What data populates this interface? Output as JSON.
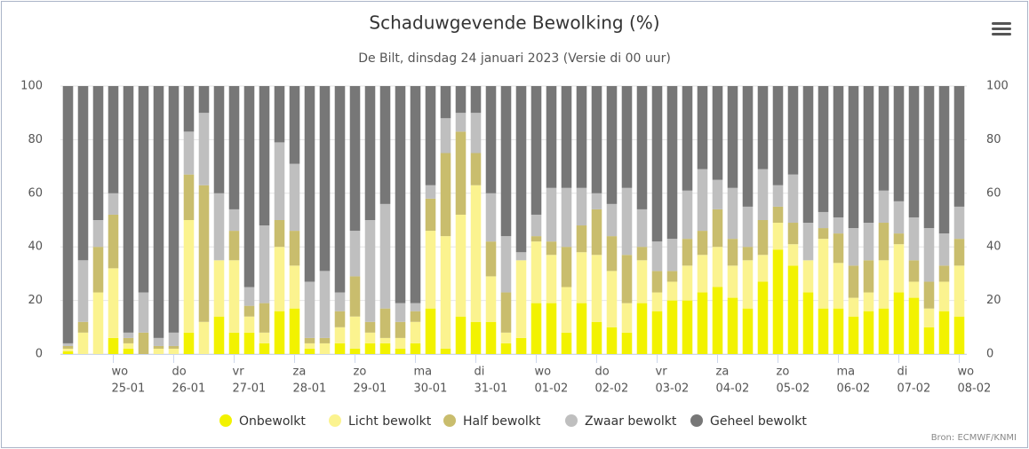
{
  "chart_data": {
    "type": "stacked_bar",
    "title": "Schaduwgevende Bewolking (%)",
    "subtitle": "De Bilt, dinsdag 24 januari 2023 (Versie di 00 uur)",
    "credits": "Bron: ECMWF/KNMI",
    "categories": [
      null,
      null,
      null,
      "25-01",
      null,
      null,
      null,
      "26-01",
      null,
      null,
      null,
      "27-01",
      null,
      null,
      null,
      "28-01",
      null,
      null,
      null,
      "29-01",
      null,
      null,
      null,
      "30-01",
      null,
      null,
      null,
      "31-01",
      null,
      null,
      null,
      "01-02",
      null,
      null,
      null,
      "02-02",
      null,
      null,
      null,
      "03-02",
      null,
      null,
      null,
      "04-02",
      null,
      null,
      null,
      "05-02",
      null,
      null,
      null,
      "06-02",
      null,
      null,
      null,
      "07-02",
      null,
      null,
      null,
      "08-02"
    ],
    "weekdays": [
      null,
      null,
      null,
      "wo",
      null,
      null,
      null,
      "do",
      null,
      null,
      null,
      "vr",
      null,
      null,
      null,
      "za",
      null,
      null,
      null,
      "zo",
      null,
      null,
      null,
      "ma",
      null,
      null,
      null,
      "di",
      null,
      null,
      null,
      "wo",
      null,
      null,
      null,
      "do",
      null,
      null,
      null,
      "vr",
      null,
      null,
      null,
      "za",
      null,
      null,
      null,
      "zo",
      null,
      null,
      null,
      "ma",
      null,
      null,
      null,
      "di",
      null,
      null,
      null,
      "wo"
    ],
    "series": [
      {
        "name": "Onbewolkt",
        "color": "#f2f200",
        "values": [
          1,
          0,
          0,
          6,
          2,
          0,
          0,
          0,
          8,
          0,
          14,
          8,
          8,
          4,
          16,
          17,
          2,
          0,
          4,
          2,
          4,
          4,
          2,
          4,
          17,
          2,
          14,
          12,
          12,
          4,
          6,
          19,
          19,
          8,
          19,
          12,
          10,
          8,
          19,
          16,
          20,
          20,
          23,
          25,
          21,
          17,
          27,
          39,
          33,
          23,
          17,
          17,
          14,
          16,
          17,
          23,
          21,
          10,
          16,
          14
        ]
      },
      {
        "name": "Licht bewolkt",
        "color": "#fbf38f",
        "values": [
          1,
          8,
          23,
          26,
          2,
          0,
          2,
          2,
          42,
          12,
          21,
          27,
          6,
          4,
          24,
          16,
          2,
          4,
          6,
          12,
          4,
          2,
          4,
          8,
          29,
          42,
          38,
          51,
          17,
          4,
          29,
          23,
          18,
          17,
          19,
          25,
          21,
          11,
          16,
          7,
          7,
          13,
          14,
          15,
          12,
          18,
          10,
          10,
          8,
          12,
          26,
          17,
          7,
          7,
          18,
          18,
          6,
          7,
          11,
          19
        ]
      },
      {
        "name": "Half bewolkt",
        "color": "#c9bd6d",
        "values": [
          1,
          4,
          17,
          20,
          2,
          8,
          1,
          1,
          17,
          51,
          0,
          11,
          4,
          11,
          10,
          13,
          2,
          2,
          6,
          15,
          4,
          11,
          6,
          4,
          12,
          31,
          31,
          12,
          13,
          15,
          0,
          2,
          5,
          15,
          10,
          17,
          13,
          18,
          5,
          8,
          4,
          10,
          9,
          14,
          10,
          5,
          13,
          6,
          8,
          0,
          4,
          11,
          12,
          12,
          14,
          4,
          8,
          10,
          6,
          10
        ]
      },
      {
        "name": "Zwaar bewolkt",
        "color": "#bfbfbf",
        "values": [
          1,
          23,
          10,
          8,
          2,
          15,
          3,
          5,
          16,
          27,
          25,
          8,
          7,
          29,
          29,
          25,
          21,
          25,
          7,
          17,
          38,
          39,
          7,
          3,
          5,
          13,
          7,
          15,
          18,
          21,
          3,
          8,
          20,
          22,
          14,
          6,
          12,
          25,
          14,
          11,
          12,
          18,
          23,
          11,
          19,
          15,
          19,
          8,
          18,
          14,
          6,
          6,
          14,
          14,
          12,
          12,
          16,
          20,
          12,
          12
        ]
      },
      {
        "name": "Geheel bewolkt",
        "color": "#777777",
        "values": [
          96,
          65,
          50,
          40,
          92,
          77,
          94,
          92,
          17,
          10,
          40,
          46,
          75,
          52,
          21,
          29,
          73,
          69,
          77,
          54,
          50,
          44,
          81,
          81,
          37,
          12,
          10,
          10,
          40,
          56,
          62,
          48,
          38,
          38,
          38,
          40,
          44,
          38,
          46,
          58,
          57,
          39,
          31,
          35,
          38,
          45,
          31,
          37,
          33,
          51,
          47,
          49,
          53,
          51,
          39,
          43,
          49,
          53,
          55,
          45
        ]
      }
    ],
    "ylim": [
      0,
      100
    ],
    "yticks": [
      0,
      20,
      40,
      60,
      80,
      100
    ],
    "y2lim": [
      0,
      100
    ],
    "y2ticks": [
      0,
      20,
      40,
      60,
      80,
      100
    ],
    "grid": true,
    "legend": "bottom"
  }
}
